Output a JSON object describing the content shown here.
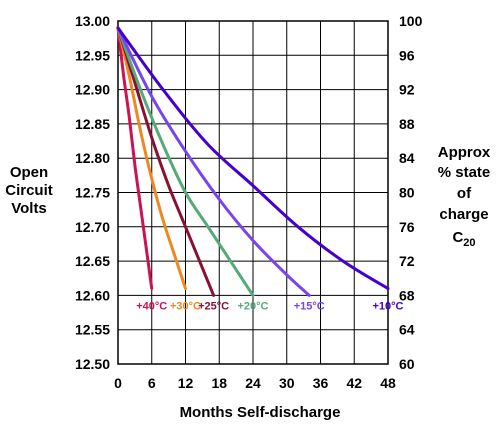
{
  "chart_data": {
    "type": "line",
    "title": "",
    "xlabel": "Months Self-discharge",
    "ylabel_left": [
      "Open",
      "Circuit",
      "Volts"
    ],
    "ylabel_right": [
      "Approx",
      "% state",
      "of",
      "charge"
    ],
    "ylabel_right_sub": {
      "base": "C",
      "sub": "20"
    },
    "xlim": [
      0,
      48
    ],
    "ylim_left": [
      12.5,
      13.0
    ],
    "ylim_right": [
      60,
      100
    ],
    "x_ticks": [
      "0",
      "6",
      "12",
      "18",
      "24",
      "30",
      "36",
      "42",
      "48"
    ],
    "y_ticks_left": [
      "12.50",
      "12.55",
      "12.60",
      "12.65",
      "12.70",
      "12.75",
      "12.80",
      "12.85",
      "12.90",
      "12.95",
      "13.00"
    ],
    "y_ticks_right": [
      "60",
      "64",
      "68",
      "72",
      "76",
      "80",
      "84",
      "88",
      "92",
      "96",
      "100"
    ],
    "grid": true,
    "series": [
      {
        "name": "+40°C",
        "color": "#cc1155",
        "x": [
          0,
          1,
          2,
          3,
          4,
          5,
          6
        ],
        "y": [
          12.99,
          12.92,
          12.86,
          12.79,
          12.73,
          12.67,
          12.61
        ]
      },
      {
        "name": "+30°C",
        "color": "#ee8822",
        "x": [
          0,
          2,
          4,
          6,
          8,
          10,
          12
        ],
        "y": [
          12.99,
          12.92,
          12.84,
          12.77,
          12.71,
          12.66,
          12.61
        ]
      },
      {
        "name": "+25°C",
        "color": "#881133",
        "x": [
          0,
          3,
          6,
          9,
          12,
          15,
          17
        ],
        "y": [
          12.99,
          12.91,
          12.83,
          12.76,
          12.7,
          12.64,
          12.6
        ]
      },
      {
        "name": "+20°C",
        "color": "#55aa77",
        "x": [
          0,
          4,
          8,
          12,
          16,
          20,
          24
        ],
        "y": [
          12.99,
          12.9,
          12.82,
          12.75,
          12.7,
          12.65,
          12.6
        ]
      },
      {
        "name": "+15°C",
        "color": "#7744ee",
        "x": [
          0,
          6,
          12,
          18,
          24,
          30,
          34
        ],
        "y": [
          12.99,
          12.89,
          12.81,
          12.74,
          12.68,
          12.63,
          12.6
        ]
      },
      {
        "name": "+10°C",
        "color": "#4400cc",
        "x": [
          0,
          8,
          16,
          24,
          32,
          40,
          48
        ],
        "y": [
          12.99,
          12.9,
          12.82,
          12.76,
          12.7,
          12.65,
          12.61
        ]
      }
    ],
    "series_label_y": 12.585
  }
}
